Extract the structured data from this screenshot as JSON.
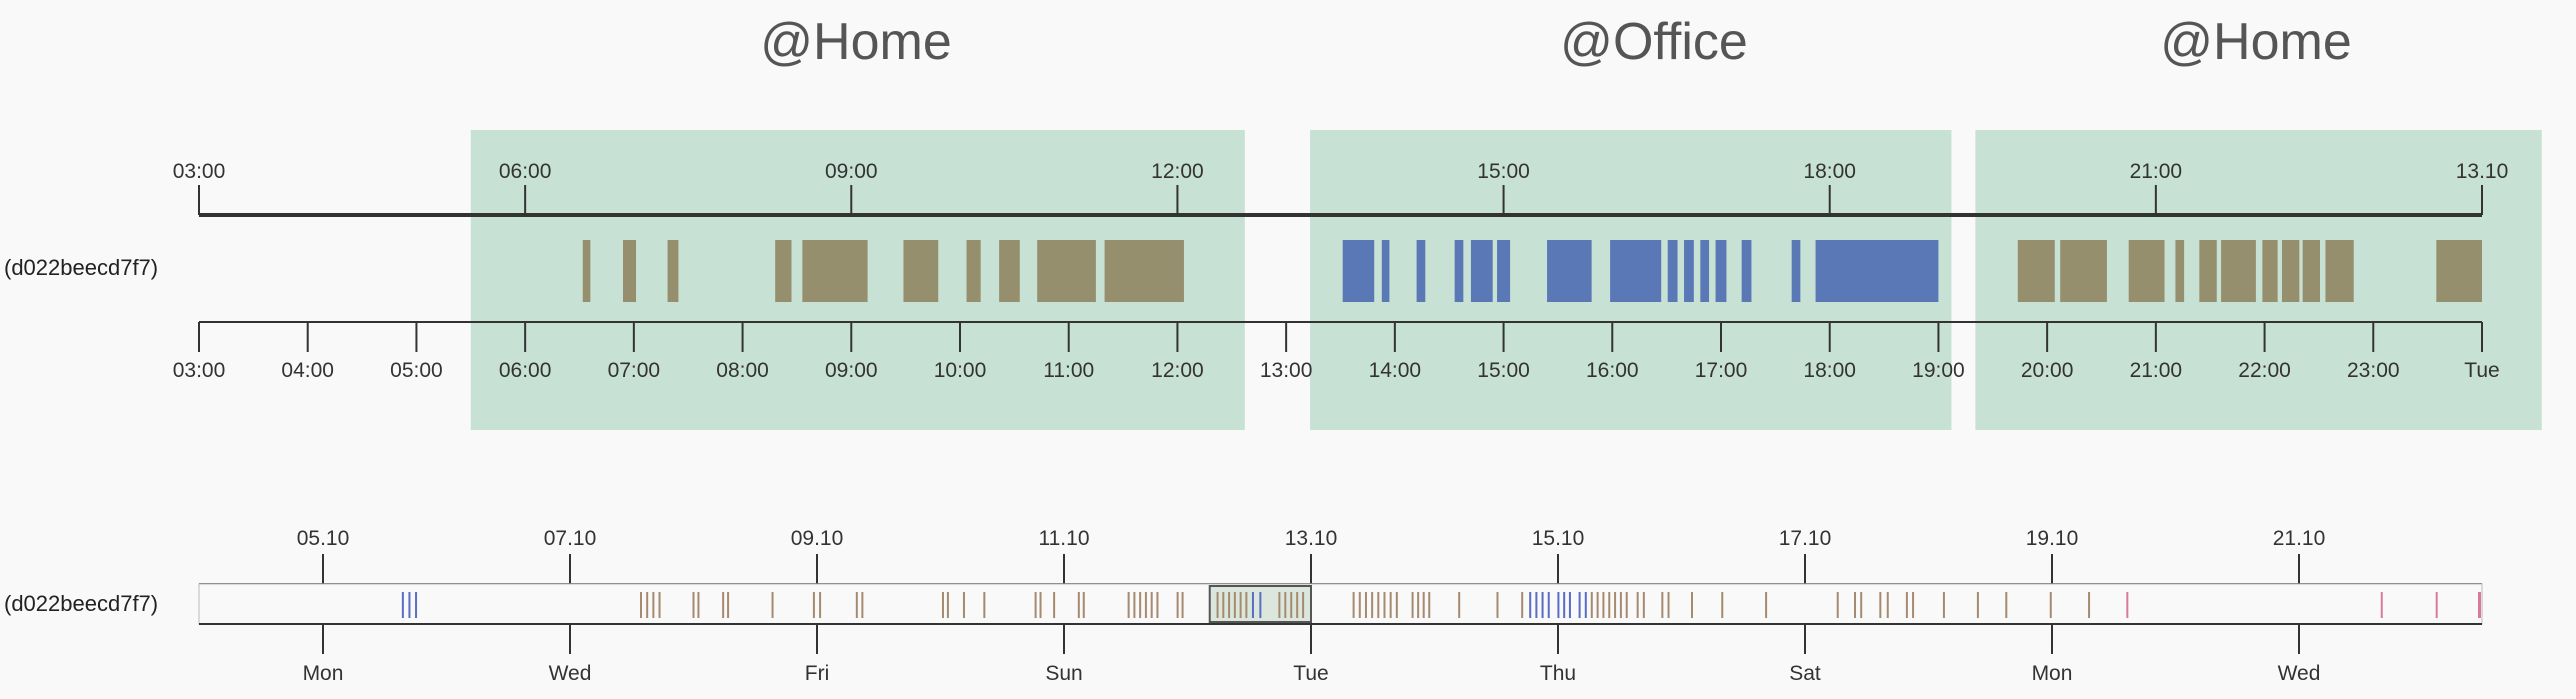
{
  "location_labels": [
    "@Home",
    "@Office",
    "@Home"
  ],
  "device_label": "(d022beecd7f7)",
  "colors": {
    "background": "#f9f9f9",
    "zone_fill": "#c8e1d5",
    "home_bar": "#958f6d",
    "office_bar": "#5978b5",
    "axis": "#333333",
    "overview_home": "#a58a70",
    "overview_office": "#5a6cc4",
    "overview_other": "#d97a97",
    "brush_fill": "#dbe6dc"
  },
  "detail": {
    "top_ticks": [
      "03:00",
      "06:00",
      "09:00",
      "12:00",
      "15:00",
      "18:00",
      "21:00",
      "13.10"
    ],
    "bottom_ticks": [
      "03:00",
      "04:00",
      "05:00",
      "06:00",
      "07:00",
      "08:00",
      "09:00",
      "10:00",
      "11:00",
      "12:00",
      "13:00",
      "14:00",
      "15:00",
      "16:00",
      "17:00",
      "18:00",
      "19:00",
      "20:00",
      "21:00",
      "22:00",
      "23:00",
      "Tue"
    ],
    "zones": [
      {
        "label_index": 0,
        "start": 5.5,
        "end": 12.62
      },
      {
        "label_index": 1,
        "start": 13.22,
        "end": 19.12
      },
      {
        "label_index": 2,
        "start": 19.34,
        "end": 24.55
      }
    ],
    "home_bars": [
      [
        6.53,
        6.6
      ],
      [
        6.9,
        7.02
      ],
      [
        7.31,
        7.41
      ],
      [
        8.3,
        8.45
      ],
      [
        8.55,
        9.15
      ],
      [
        9.48,
        9.8
      ],
      [
        10.06,
        10.19
      ],
      [
        10.36,
        10.55
      ],
      [
        10.71,
        11.25
      ],
      [
        11.33,
        12.06
      ],
      [
        19.73,
        20.07
      ],
      [
        20.12,
        20.55
      ],
      [
        20.75,
        21.08
      ],
      [
        21.18,
        21.26
      ],
      [
        21.4,
        21.56
      ],
      [
        21.6,
        21.92
      ],
      [
        21.98,
        22.12
      ],
      [
        22.16,
        22.32
      ],
      [
        22.35,
        22.51
      ],
      [
        22.56,
        22.82
      ],
      [
        23.58,
        24.0
      ]
    ],
    "office_bars": [
      [
        13.52,
        13.81
      ],
      [
        13.88,
        13.95
      ],
      [
        14.2,
        14.28
      ],
      [
        14.55,
        14.63
      ],
      [
        14.7,
        14.9
      ],
      [
        14.94,
        15.06
      ],
      [
        15.4,
        15.81
      ],
      [
        15.98,
        16.45
      ],
      [
        16.51,
        16.6
      ],
      [
        16.66,
        16.75
      ],
      [
        16.81,
        16.89
      ],
      [
        16.95,
        17.05
      ],
      [
        17.19,
        17.28
      ],
      [
        17.65,
        17.73
      ],
      [
        17.87,
        19.0
      ]
    ]
  },
  "overview": {
    "top_ticks": [
      "05.10",
      "07.10",
      "09.10",
      "11.10",
      "13.10",
      "15.10",
      "17.10",
      "19.10",
      "21.10"
    ],
    "bottom_ticks": [
      "Mon",
      "Wed",
      "Fri",
      "Sun",
      "Tue",
      "Thu",
      "Sat",
      "Mon",
      "Wed"
    ],
    "brush": {
      "start_day": 12.18,
      "end_day": 13.0
    },
    "home_segments": [
      [
        7.55,
        7.75
      ],
      [
        7.98,
        8.06
      ],
      [
        8.22,
        8.3
      ],
      [
        8.62,
        8.66
      ],
      [
        8.95,
        9.05
      ],
      [
        9.3,
        9.39
      ],
      [
        10.0,
        10.08
      ],
      [
        10.18,
        10.2
      ],
      [
        10.33,
        10.38
      ],
      [
        10.75,
        10.83
      ],
      [
        10.9,
        10.94
      ],
      [
        11.1,
        11.18
      ],
      [
        11.5,
        11.78
      ],
      [
        11.9,
        11.98
      ],
      [
        12.22,
        12.5
      ],
      [
        12.72,
        12.96
      ],
      [
        13.32,
        13.72
      ],
      [
        13.8,
        13.98
      ],
      [
        14.18,
        14.22
      ],
      [
        14.5,
        14.52
      ],
      [
        14.68,
        14.74
      ],
      [
        15.25,
        15.58
      ],
      [
        15.62,
        15.72
      ],
      [
        15.82,
        15.92
      ],
      [
        16.05,
        16.12
      ],
      [
        16.3,
        16.36
      ],
      [
        16.65,
        16.72
      ],
      [
        17.25,
        17.28
      ],
      [
        17.38,
        17.48
      ],
      [
        17.58,
        17.7
      ],
      [
        17.8,
        17.9
      ],
      [
        18.1,
        18.15
      ],
      [
        18.38,
        18.42
      ],
      [
        18.62,
        18.64
      ],
      [
        18.98,
        19.0
      ],
      [
        19.28,
        19.32
      ]
    ],
    "office_segments": [
      [
        5.62,
        5.78
      ],
      [
        12.5,
        12.62
      ],
      [
        14.75,
        14.95
      ],
      [
        14.98,
        15.12
      ],
      [
        15.15,
        15.25
      ]
    ],
    "other_segments": [
      [
        19.6,
        19.62
      ],
      [
        21.66,
        21.68
      ],
      [
        22.1,
        22.13
      ]
    ]
  }
}
